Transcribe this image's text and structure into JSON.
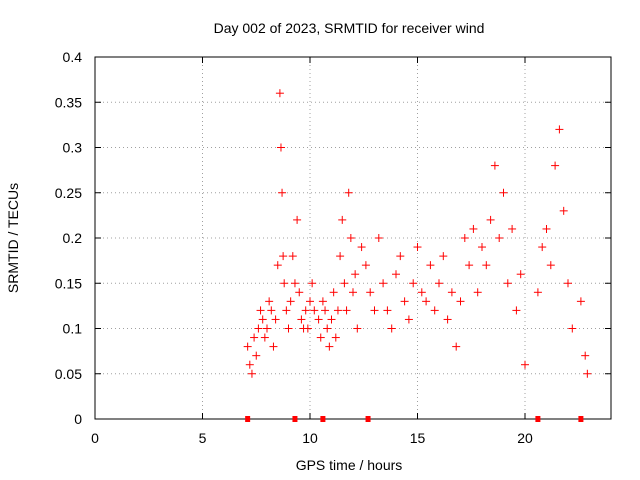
{
  "chart_data": {
    "type": "scatter",
    "title": "Day 002 of 2023, SRMTID for receiver wind",
    "xlabel": "GPS time / hours",
    "ylabel": "SRMTID / TECUs",
    "xlim": [
      0,
      24
    ],
    "ylim": [
      0,
      0.4
    ],
    "xticks": [
      0,
      5,
      10,
      15,
      20
    ],
    "yticks": [
      0,
      0.05,
      0.1,
      0.15,
      0.2,
      0.25,
      0.3,
      0.35,
      0.4
    ],
    "grid": true,
    "marker": "+",
    "color": "#ff0000",
    "series": [
      {
        "name": "SRMTID",
        "x": [
          7.1,
          7.2,
          7.3,
          7.4,
          7.5,
          7.6,
          7.7,
          7.8,
          7.9,
          8.0,
          8.1,
          8.2,
          8.3,
          8.4,
          8.5,
          8.6,
          8.65,
          8.7,
          8.75,
          8.8,
          8.9,
          9.0,
          9.1,
          9.2,
          9.3,
          9.4,
          9.5,
          9.6,
          9.7,
          9.8,
          9.9,
          10.0,
          10.1,
          10.2,
          10.4,
          10.5,
          10.6,
          10.7,
          10.8,
          10.9,
          11.0,
          11.1,
          11.2,
          11.3,
          11.4,
          11.5,
          11.6,
          11.7,
          11.8,
          11.9,
          12.0,
          12.1,
          12.2,
          12.4,
          12.6,
          12.8,
          13.0,
          13.2,
          13.4,
          13.6,
          13.8,
          14.0,
          14.2,
          14.4,
          14.6,
          14.8,
          15.0,
          15.2,
          15.4,
          15.6,
          15.8,
          16.0,
          16.2,
          16.4,
          16.6,
          16.8,
          17.0,
          17.2,
          17.4,
          17.6,
          17.8,
          18.0,
          18.2,
          18.4,
          18.6,
          18.8,
          19.0,
          19.2,
          19.4,
          19.6,
          19.8,
          20.0,
          20.6,
          20.8,
          21.0,
          21.2,
          21.4,
          21.6,
          21.8,
          22.0,
          22.2,
          22.6,
          22.8,
          22.9
        ],
        "y": [
          0.08,
          0.06,
          0.05,
          0.09,
          0.07,
          0.1,
          0.12,
          0.11,
          0.09,
          0.1,
          0.13,
          0.12,
          0.08,
          0.11,
          0.17,
          0.36,
          0.3,
          0.25,
          0.18,
          0.15,
          0.12,
          0.1,
          0.13,
          0.18,
          0.15,
          0.22,
          0.14,
          0.11,
          0.1,
          0.12,
          0.1,
          0.13,
          0.15,
          0.12,
          0.11,
          0.09,
          0.13,
          0.12,
          0.1,
          0.08,
          0.11,
          0.14,
          0.09,
          0.12,
          0.18,
          0.22,
          0.15,
          0.12,
          0.25,
          0.2,
          0.14,
          0.16,
          0.1,
          0.19,
          0.17,
          0.14,
          0.12,
          0.2,
          0.15,
          0.12,
          0.1,
          0.16,
          0.18,
          0.13,
          0.11,
          0.15,
          0.19,
          0.14,
          0.13,
          0.17,
          0.12,
          0.15,
          0.18,
          0.11,
          0.14,
          0.08,
          0.13,
          0.2,
          0.17,
          0.21,
          0.14,
          0.19,
          0.17,
          0.22,
          0.28,
          0.2,
          0.25,
          0.15,
          0.21,
          0.12,
          0.16,
          0.06,
          0.14,
          0.19,
          0.21,
          0.17,
          0.28,
          0.32,
          0.23,
          0.15,
          0.1,
          0.13,
          0.07,
          0.05
        ]
      }
    ],
    "axis_markers": {
      "x": [
        7.1,
        9.3,
        10.6,
        12.7,
        20.6,
        22.6
      ]
    }
  }
}
